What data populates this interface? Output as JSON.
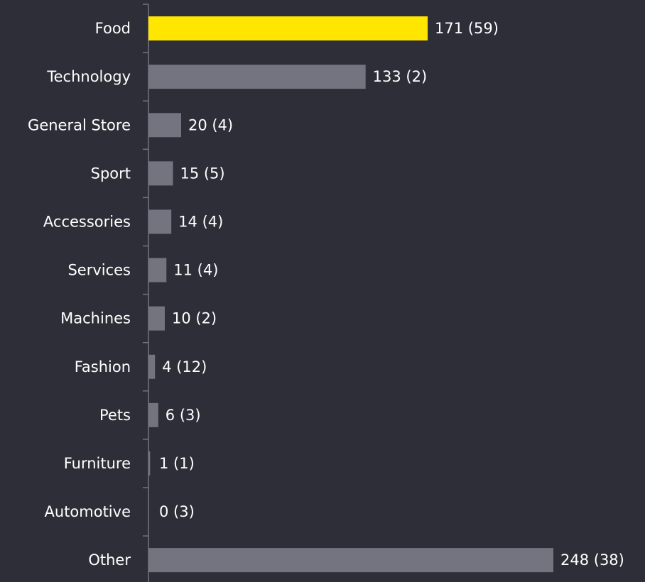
{
  "chart_data": {
    "type": "hbar",
    "categories": [
      "Food",
      "Technology",
      "General Store",
      "Sport",
      "Accessories",
      "Services",
      "Machines",
      "Fashion",
      "Pets",
      "Furniture",
      "Automotive",
      "Other"
    ],
    "values": [
      171,
      133,
      20,
      15,
      14,
      11,
      10,
      4,
      6,
      1,
      0,
      248
    ],
    "value_labels": [
      "171 (59)",
      "133 (2)",
      "20 (4)",
      "15 (5)",
      "14 (4)",
      "11 (4)",
      "10 (2)",
      "4 (12)",
      "6 (3)",
      "1 (1)",
      "0 (3)",
      "248 (38)"
    ],
    "colors": [
      "#ffe600",
      "#747480",
      "#747480",
      "#747480",
      "#747480",
      "#747480",
      "#747480",
      "#747480",
      "#747480",
      "#747480",
      "#747480",
      "#747480"
    ]
  }
}
